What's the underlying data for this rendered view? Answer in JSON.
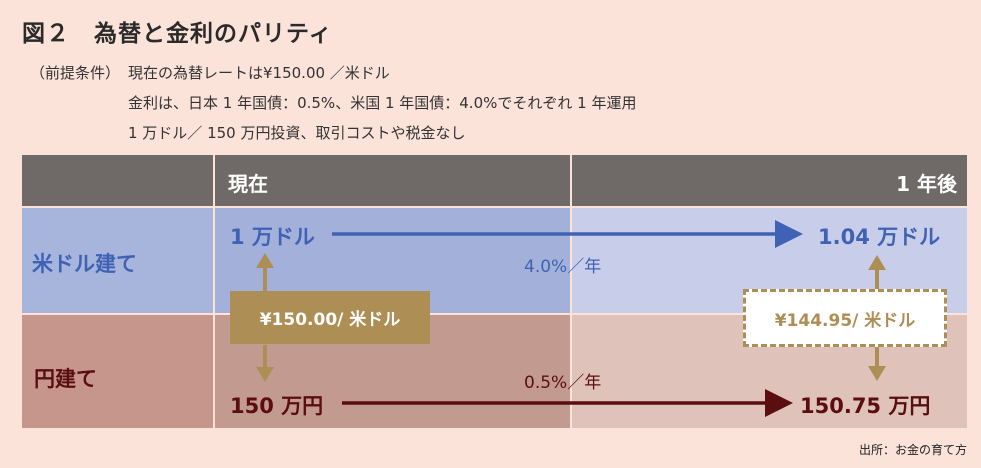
{
  "title": "図２　為替と金利のパリティ",
  "premise": {
    "label": "（前提条件）",
    "line1": "現在の為替レートは¥150.00 ／米ドル",
    "line2": "金利は、日本 1 年国債：0.5%、米国 1 年国債：4.0%でそれぞれ 1 年運用",
    "line3": "1 万ドル／ 150 万円投資、取引コストや税金なし"
  },
  "table": {
    "header_now": "現在",
    "header_later": "1 年後",
    "row_usd": "米ドル建て",
    "row_jpy": "円建て"
  },
  "usd": {
    "start": "1 万ドル",
    "end": "1.04 万ドル",
    "rate": "4.0%／年"
  },
  "jpy": {
    "start": "150 万円",
    "end": "150.75 万円",
    "rate": "0.5%／年"
  },
  "fx": {
    "now": "¥150.00/ 米ドル",
    "forward": "¥144.95/ 米ドル"
  },
  "source": "出所：お金の育て方",
  "colors": {
    "background": "#fbe3da",
    "header": "#6f6a67",
    "usd_row": "#a7b5dc",
    "usd_now_cell": "#a3b1da",
    "usd_later_cell": "#c8cde9",
    "jpy_row": "#c6968c",
    "jpy_now_cell": "#c39a90",
    "jpy_later_cell": "#dfc3ba",
    "usd_text": "#3f62b4",
    "jpy_text": "#5a0e10",
    "fx_gold": "#ad8e54"
  }
}
